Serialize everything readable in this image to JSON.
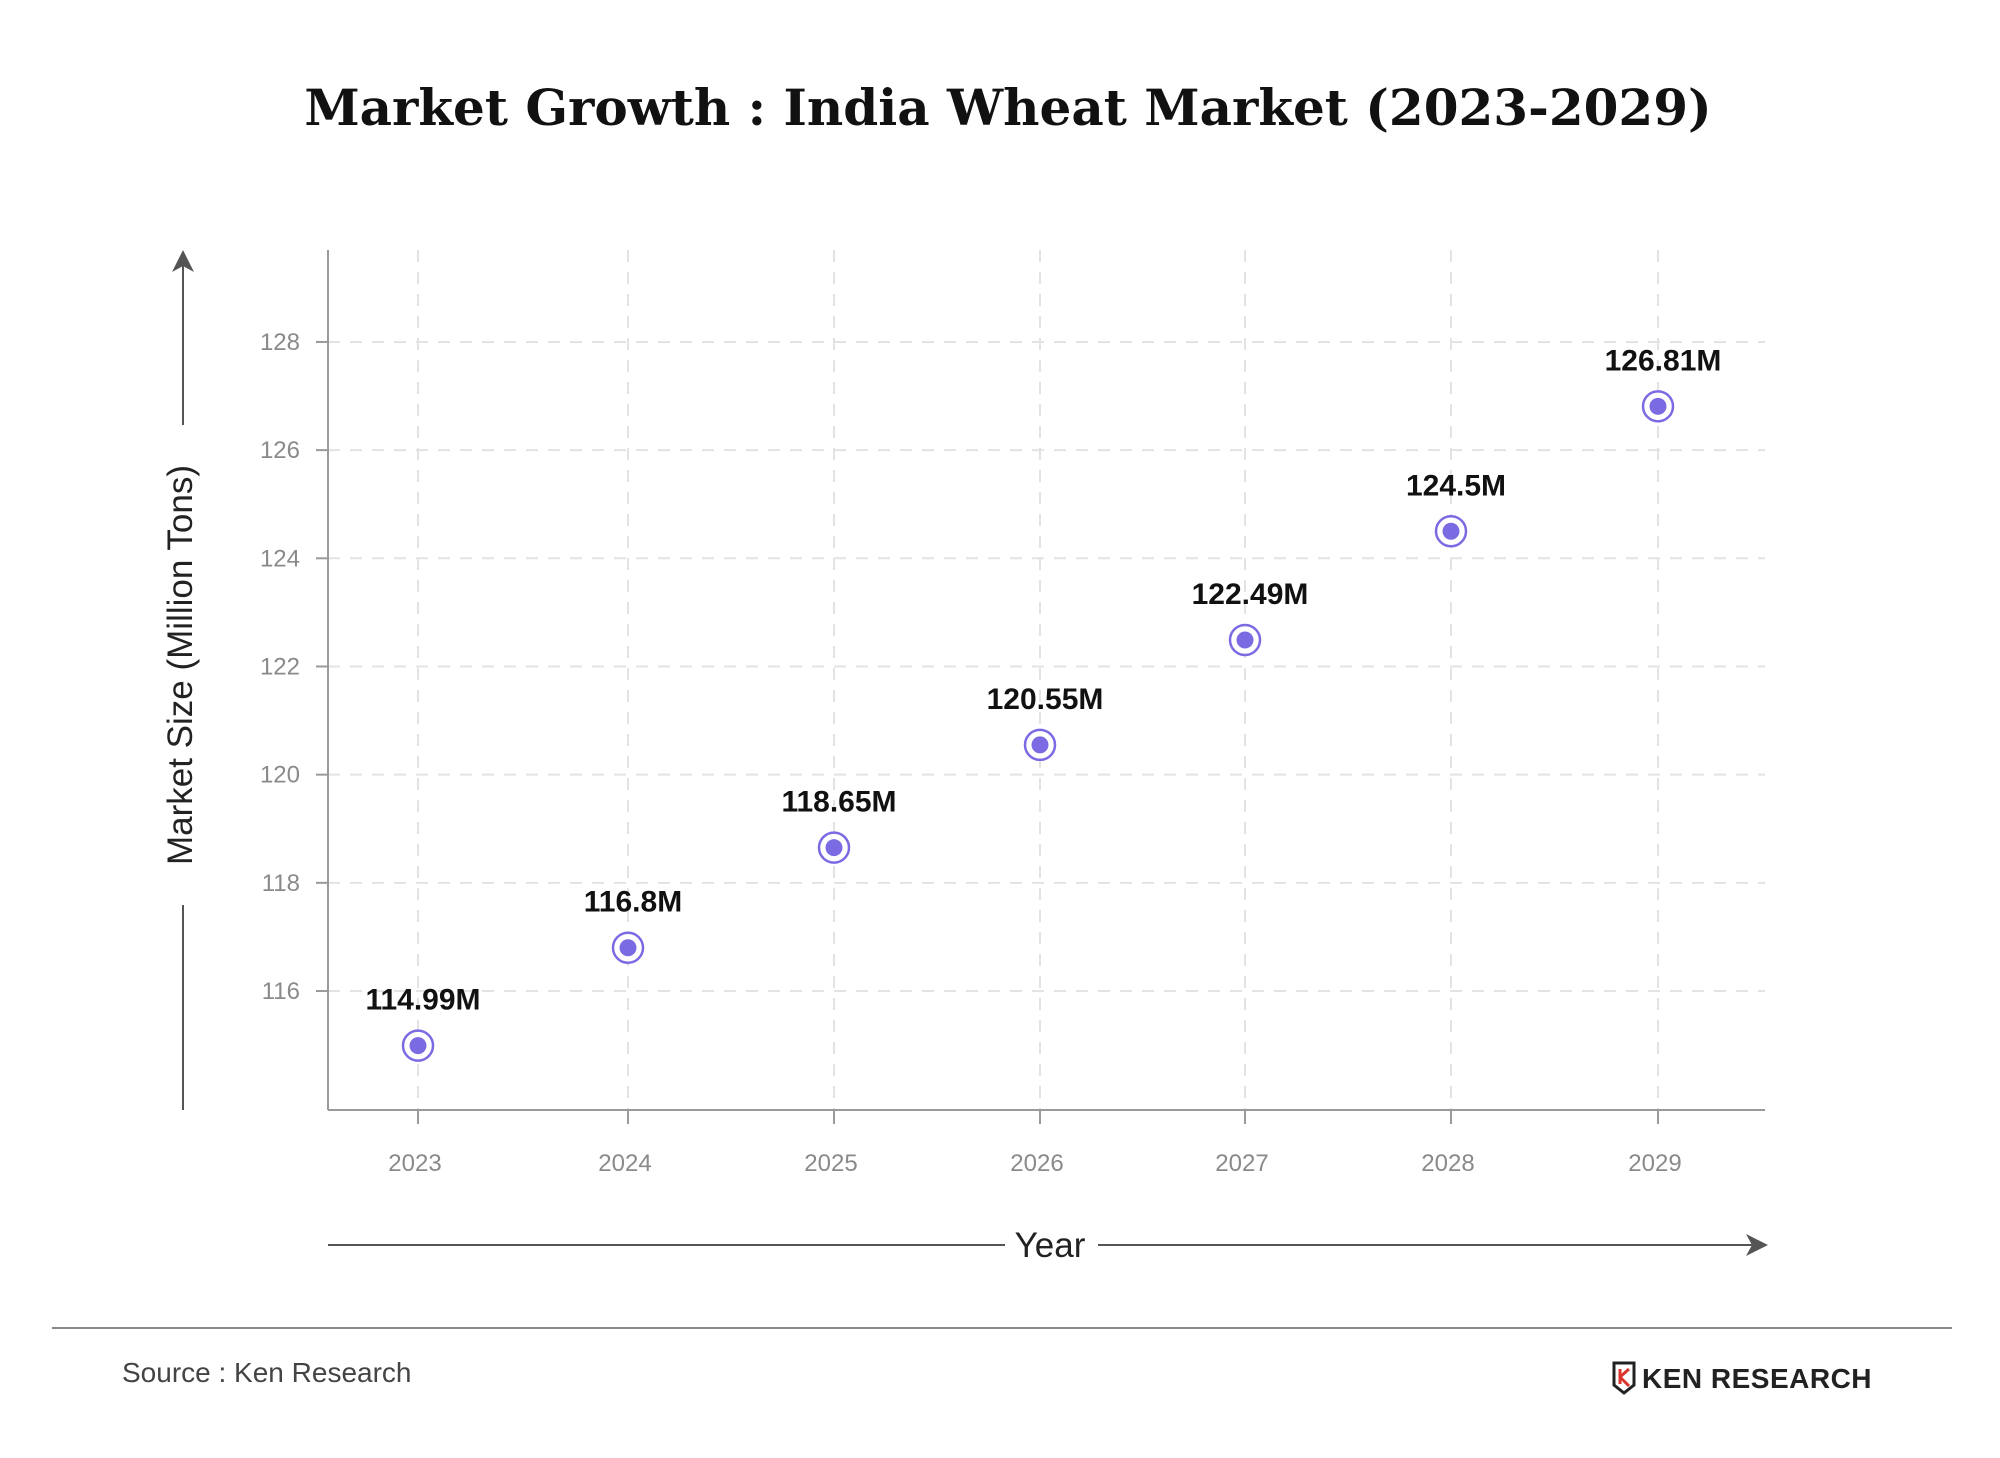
{
  "chart_data": {
    "type": "scatter",
    "title": "Market Growth : India Wheat Market (2023-2029)",
    "xlabel": "Year",
    "ylabel": "Market Size (Million Tons)",
    "x": [
      "2023",
      "2024",
      "2025",
      "2026",
      "2027",
      "2028",
      "2029"
    ],
    "series": [
      {
        "values": [
          114.99,
          116.8,
          118.65,
          120.55,
          122.49,
          124.5,
          126.81
        ],
        "data_labels": [
          "114.99M",
          "116.8M",
          "118.65M",
          "120.55M",
          "122.49M",
          "124.5M",
          "126.81M"
        ],
        "color": "#7b6be3"
      }
    ],
    "yticks": [
      116,
      118,
      120,
      122,
      124,
      126,
      128
    ],
    "ylim": [
      113.8,
      129.7
    ],
    "grid": true
  },
  "footer": {
    "source": "Source : Ken Research",
    "brand": "KEN RESEARCH"
  },
  "colors": {
    "point": "#7b6be3",
    "grid": "#e3e3e3",
    "axis": "#9a9a9a",
    "arrow": "#555555"
  },
  "icons": {
    "brand_logo": "ken-research-logo-icon"
  }
}
